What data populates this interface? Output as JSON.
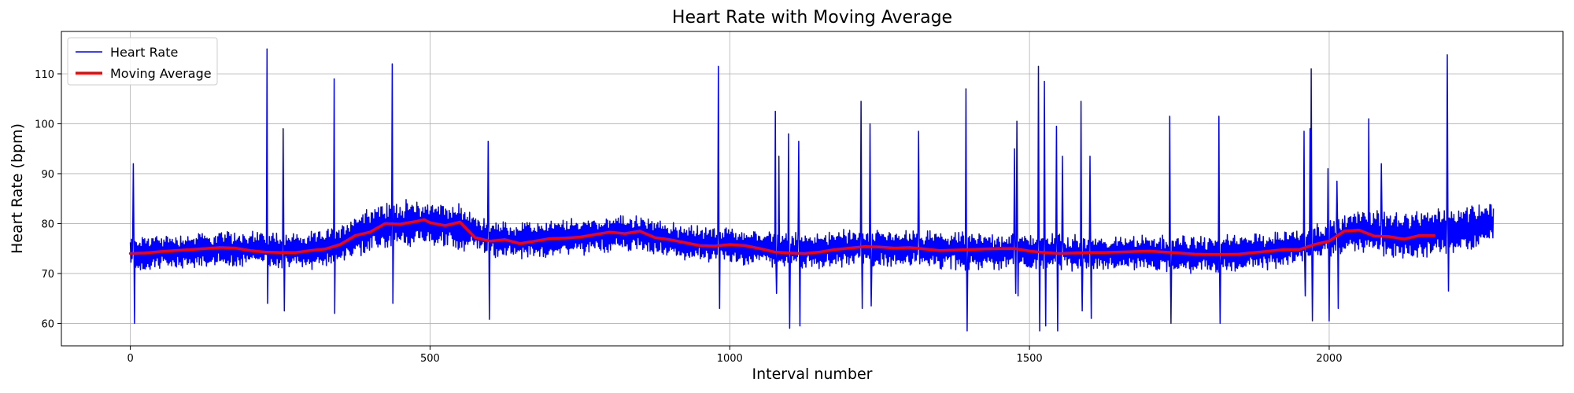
{
  "chart_data": {
    "type": "line",
    "title": "Heart Rate with Moving Average",
    "xlabel": "Interval number",
    "ylabel": "Heart Rate (bpm)",
    "xlim": [
      -115,
      2390
    ],
    "ylim": [
      55.5,
      118.5
    ],
    "xticks": [
      0,
      500,
      1000,
      1500,
      2000
    ],
    "yticks": [
      60,
      70,
      80,
      90,
      100,
      110
    ],
    "grid": true,
    "legend_position": "top-left",
    "series": [
      {
        "name": "Heart Rate",
        "color": "#0000ff",
        "x_start": 0,
        "x_step": 1,
        "n_points": 2275,
        "baseline_profile": [
          [
            0,
            74
          ],
          [
            100,
            74.5
          ],
          [
            200,
            75
          ],
          [
            300,
            74.5
          ],
          [
            350,
            76
          ],
          [
            400,
            79
          ],
          [
            450,
            80
          ],
          [
            500,
            80
          ],
          [
            560,
            79
          ],
          [
            600,
            77
          ],
          [
            650,
            76.5
          ],
          [
            700,
            77
          ],
          [
            800,
            78
          ],
          [
            850,
            78
          ],
          [
            900,
            76.5
          ],
          [
            1000,
            75.5
          ],
          [
            1100,
            74.5
          ],
          [
            1200,
            75
          ],
          [
            1300,
            75
          ],
          [
            1400,
            74.5
          ],
          [
            1500,
            74.5
          ],
          [
            1600,
            74
          ],
          [
            1700,
            74
          ],
          [
            1800,
            73.8
          ],
          [
            1900,
            74.5
          ],
          [
            1950,
            75.5
          ],
          [
            2000,
            77
          ],
          [
            2040,
            78.5
          ],
          [
            2100,
            78
          ],
          [
            2150,
            77.5
          ],
          [
            2200,
            78.5
          ],
          [
            2275,
            80
          ]
        ],
        "spikes": [
          [
            5,
            92
          ],
          [
            7,
            60
          ],
          [
            228,
            115
          ],
          [
            229,
            64
          ],
          [
            255,
            99
          ],
          [
            257,
            62.5
          ],
          [
            340,
            109
          ],
          [
            341,
            62
          ],
          [
            437,
            112
          ],
          [
            438,
            64
          ],
          [
            597,
            96.5
          ],
          [
            599,
            60.8
          ],
          [
            981,
            111.5
          ],
          [
            983,
            63
          ],
          [
            1076,
            102.5
          ],
          [
            1078,
            66
          ],
          [
            1082,
            93.5
          ],
          [
            1098,
            98
          ],
          [
            1100,
            59
          ],
          [
            1115,
            96.5
          ],
          [
            1117,
            59.5
          ],
          [
            1219,
            104.5
          ],
          [
            1221,
            63
          ],
          [
            1234,
            100
          ],
          [
            1236,
            63.5
          ],
          [
            1315,
            98.5
          ],
          [
            1394,
            107
          ],
          [
            1396,
            58.5
          ],
          [
            1475,
            95
          ],
          [
            1477,
            66
          ],
          [
            1479,
            100.5
          ],
          [
            1481,
            65.5
          ],
          [
            1515,
            111.5
          ],
          [
            1517,
            58.5
          ],
          [
            1525,
            108.5
          ],
          [
            1527,
            59.5
          ],
          [
            1545,
            99.5
          ],
          [
            1547,
            58.5
          ],
          [
            1555,
            93.5
          ],
          [
            1586,
            104.5
          ],
          [
            1588,
            62.5
          ],
          [
            1601,
            93.5
          ],
          [
            1603,
            61
          ],
          [
            1734,
            101.5
          ],
          [
            1736,
            60
          ],
          [
            1816,
            101.5
          ],
          [
            1818,
            60
          ],
          [
            1958,
            98.5
          ],
          [
            1960,
            65.5
          ],
          [
            1968,
            99
          ],
          [
            1970,
            111
          ],
          [
            1972,
            60.5
          ],
          [
            1998,
            91
          ],
          [
            2000,
            60.5
          ],
          [
            2013,
            88.5
          ],
          [
            2015,
            63
          ],
          [
            2066,
            101
          ],
          [
            2087,
            92
          ],
          [
            2197,
            113.8
          ],
          [
            2199,
            66.5
          ]
        ]
      },
      {
        "name": "Moving Average",
        "color": "#ff0000",
        "x": [
          0,
          25,
          50,
          75,
          100,
          125,
          150,
          175,
          200,
          225,
          250,
          275,
          300,
          325,
          350,
          375,
          400,
          425,
          450,
          475,
          490,
          500,
          525,
          550,
          575,
          600,
          625,
          650,
          675,
          700,
          725,
          750,
          775,
          800,
          825,
          850,
          875,
          900,
          925,
          950,
          975,
          1000,
          1025,
          1050,
          1075,
          1100,
          1125,
          1150,
          1175,
          1200,
          1225,
          1250,
          1275,
          1300,
          1325,
          1350,
          1375,
          1400,
          1425,
          1450,
          1475,
          1500,
          1525,
          1550,
          1575,
          1600,
          1625,
          1650,
          1675,
          1700,
          1725,
          1750,
          1775,
          1800,
          1825,
          1850,
          1875,
          1900,
          1925,
          1950,
          1975,
          2000,
          2025,
          2050,
          2075,
          2100,
          2125,
          2150,
          2175
        ],
        "y": [
          74.0,
          74.1,
          74.4,
          74.6,
          74.8,
          75.0,
          75.2,
          75.1,
          74.6,
          74.3,
          74.2,
          74.2,
          74.6,
          74.9,
          75.8,
          77.6,
          78.3,
          80.0,
          79.9,
          80.4,
          80.8,
          80.2,
          79.6,
          80.3,
          77.2,
          76.5,
          76.8,
          76.0,
          76.5,
          77.0,
          77.1,
          77.3,
          77.8,
          78.3,
          78.0,
          78.5,
          77.2,
          76.8,
          76.2,
          75.6,
          75.5,
          75.8,
          75.6,
          75.0,
          74.3,
          74.1,
          74.0,
          74.3,
          74.8,
          75.1,
          75.4,
          75.3,
          75.1,
          75.2,
          74.9,
          74.6,
          74.7,
          74.8,
          74.9,
          75.0,
          75.0,
          74.5,
          74.2,
          74.0,
          74.1,
          74.2,
          74.2,
          74.3,
          74.4,
          74.5,
          74.3,
          74.1,
          73.9,
          73.8,
          73.8,
          73.9,
          74.2,
          74.5,
          74.8,
          74.8,
          75.8,
          76.5,
          78.5,
          78.7,
          77.5,
          77.4,
          76.9,
          77.6,
          77.6
        ]
      }
    ]
  }
}
